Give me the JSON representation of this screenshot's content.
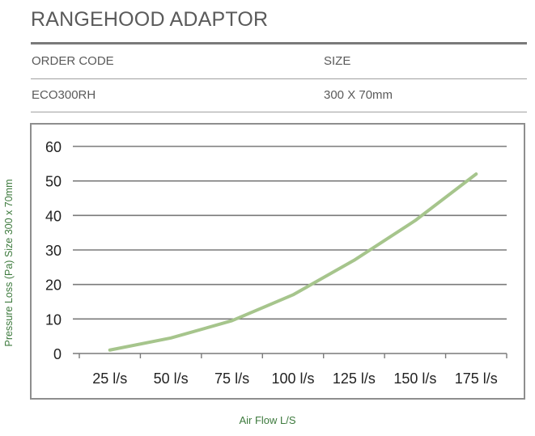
{
  "header": {
    "title": "RANGEHOOD ADAPTOR"
  },
  "table": {
    "columns": [
      "ORDER CODE",
      "SIZE"
    ],
    "rows": [
      [
        "ECO300RH",
        "300 X 70mm"
      ]
    ]
  },
  "colors": {
    "line": "#a6c58c",
    "grid": "#7a7a7a",
    "axis_label": "#3d7a3d",
    "text": "#5a5a5a"
  },
  "chart_data": {
    "type": "line",
    "categories": [
      "25 l/s",
      "50 l/s",
      "75 l/s",
      "100 l/s",
      "125 l/s",
      "150 l/s",
      "175 l/s"
    ],
    "x": [
      25,
      50,
      75,
      100,
      125,
      150,
      175
    ],
    "series": [
      {
        "values": [
          1,
          4.5,
          9.5,
          17,
          27,
          38.5,
          52
        ]
      }
    ],
    "yticks": [
      "0",
      "10",
      "20",
      "30",
      "40",
      "50",
      "60"
    ],
    "ylim": [
      0,
      60
    ],
    "ylabel": "Pressure Loss (Pa) Size 300 x 70mm",
    "xlabel": "Air Flow L/S",
    "grid": "horizontal",
    "legend": "none"
  }
}
